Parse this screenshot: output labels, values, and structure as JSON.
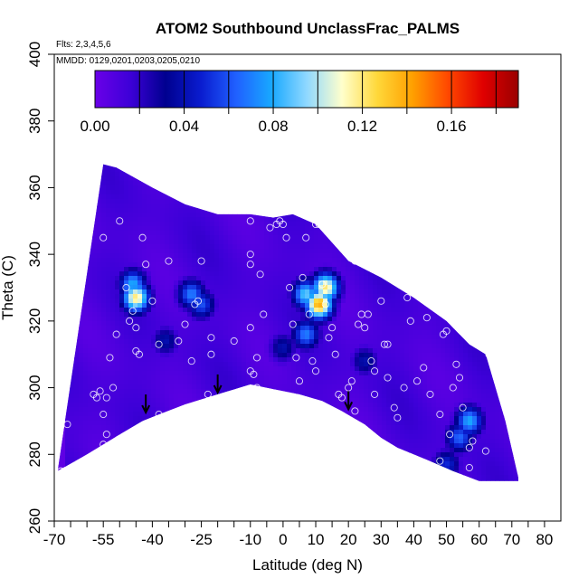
{
  "chart_data": {
    "type": "heatmap",
    "title": "ATOM2 Southbound UnclassFrac_PALMS",
    "subtitle_flights": "Flts: 2,3,4,5,6",
    "subtitle_dates": "MMDD: 0129,0201,0203,0205,0210",
    "xlabel": "Latitude (deg N)",
    "ylabel": "Theta (C)",
    "xlim": [
      -70,
      85
    ],
    "ylim": [
      260,
      400
    ],
    "x_ticks": [
      -70,
      -55,
      -40,
      -25,
      -10,
      0,
      10,
      20,
      30,
      40,
      50,
      60,
      70,
      80
    ],
    "x_minor_ticks": [
      -65,
      -60,
      -50,
      -45,
      -35,
      -30,
      -20,
      -15,
      -5,
      5,
      15,
      25,
      35,
      45,
      55,
      65,
      75
    ],
    "y_ticks": [
      260,
      280,
      300,
      320,
      340,
      360,
      380,
      400
    ],
    "colorbar": {
      "ticks": [
        0.0,
        0.04,
        0.08,
        0.12,
        0.16
      ],
      "tick_labels": [
        "0.00",
        "0.04",
        "0.08",
        "0.12",
        "0.16"
      ],
      "range": [
        0.0,
        0.19
      ],
      "colors": [
        "#6a00e8",
        "#3d00d8",
        "#00008f",
        "#0a1ccf",
        "#2060ff",
        "#18a8ff",
        "#8fd8ff",
        "#ffffcc",
        "#ffd83a",
        "#ffa000",
        "#ff4800",
        "#e00000",
        "#9a0000"
      ]
    },
    "boundary_top": [
      [
        -69,
        275
      ],
      [
        -55,
        367
      ],
      [
        -51,
        366
      ],
      [
        -40,
        360
      ],
      [
        -30,
        355
      ],
      [
        -20,
        352
      ],
      [
        -10,
        352
      ],
      [
        -3,
        351
      ],
      [
        3,
        352
      ],
      [
        10,
        349
      ],
      [
        20,
        338
      ],
      [
        30,
        333
      ],
      [
        40,
        327
      ],
      [
        50,
        320
      ],
      [
        57,
        313
      ],
      [
        62,
        310
      ],
      [
        68,
        290
      ],
      [
        72,
        273
      ]
    ],
    "boundary_bottom": [
      [
        -69,
        275
      ],
      [
        -60,
        280
      ],
      [
        -50,
        286
      ],
      [
        -43,
        290
      ],
      [
        -38,
        292
      ],
      [
        -30,
        295
      ],
      [
        -20,
        298
      ],
      [
        -10,
        301
      ],
      [
        -5,
        300
      ],
      [
        5,
        298
      ],
      [
        12,
        296
      ],
      [
        18,
        293
      ],
      [
        25,
        289
      ],
      [
        30,
        285
      ],
      [
        35,
        282
      ],
      [
        40,
        280
      ],
      [
        45,
        278
      ],
      [
        52,
        275
      ],
      [
        60,
        272
      ],
      [
        72,
        272
      ]
    ],
    "hotspots": [
      {
        "lat": 11,
        "theta": 325,
        "value": 0.14
      },
      {
        "lat": 13,
        "theta": 330,
        "value": 0.12
      },
      {
        "lat": 7,
        "theta": 328,
        "value": 0.09
      },
      {
        "lat": -45,
        "theta": 327,
        "value": 0.12
      },
      {
        "lat": -46,
        "theta": 331,
        "value": 0.08
      },
      {
        "lat": -28,
        "theta": 328,
        "value": 0.07
      },
      {
        "lat": -25,
        "theta": 325,
        "value": 0.06
      },
      {
        "lat": 7,
        "theta": 316,
        "value": 0.07
      },
      {
        "lat": 57,
        "theta": 290,
        "value": 0.08
      },
      {
        "lat": 54,
        "theta": 285,
        "value": 0.065
      },
      {
        "lat": 50,
        "theta": 277,
        "value": 0.05
      },
      {
        "lat": -36,
        "theta": 314,
        "value": 0.04
      },
      {
        "lat": 0,
        "theta": 312,
        "value": 0.04
      },
      {
        "lat": 25,
        "theta": 308,
        "value": 0.04
      }
    ],
    "samples": [
      [
        -68,
        275
      ],
      [
        -66,
        289
      ],
      [
        -58,
        298
      ],
      [
        -57,
        297
      ],
      [
        -56,
        299
      ],
      [
        -55,
        292
      ],
      [
        -54,
        297
      ],
      [
        -54,
        286
      ],
      [
        -55,
        283
      ],
      [
        -56,
        281
      ],
      [
        -52,
        300
      ],
      [
        -51,
        316
      ],
      [
        -53,
        309
      ],
      [
        -55,
        345
      ],
      [
        -50,
        350
      ],
      [
        -48,
        330
      ],
      [
        -47,
        320
      ],
      [
        -45,
        318
      ],
      [
        -45,
        311
      ],
      [
        -46,
        323
      ],
      [
        -44,
        310
      ],
      [
        -43,
        345
      ],
      [
        -42,
        337
      ],
      [
        -40,
        326
      ],
      [
        -38,
        292
      ],
      [
        -38,
        313
      ],
      [
        -35,
        338
      ],
      [
        -32,
        314
      ],
      [
        -30,
        319
      ],
      [
        -28,
        308
      ],
      [
        -27,
        325
      ],
      [
        -26,
        326
      ],
      [
        -25,
        338
      ],
      [
        -23,
        298
      ],
      [
        -22,
        310
      ],
      [
        -22,
        315
      ],
      [
        -15,
        314
      ],
      [
        -10,
        350
      ],
      [
        -10,
        340
      ],
      [
        -10,
        337
      ],
      [
        -10,
        318
      ],
      [
        -10,
        305
      ],
      [
        -9,
        304
      ],
      [
        -8,
        309
      ],
      [
        -8,
        300
      ],
      [
        -6,
        322
      ],
      [
        -7,
        334
      ],
      [
        -4,
        348
      ],
      [
        -2,
        349
      ],
      [
        -1,
        350
      ],
      [
        0,
        349
      ],
      [
        1,
        345
      ],
      [
        2,
        330
      ],
      [
        3,
        319
      ],
      [
        4,
        309
      ],
      [
        5,
        302
      ],
      [
        6,
        333
      ],
      [
        7,
        345
      ],
      [
        8,
        322
      ],
      [
        9,
        308
      ],
      [
        10,
        305
      ],
      [
        10,
        349
      ],
      [
        11,
        349
      ],
      [
        12,
        331
      ],
      [
        13,
        325
      ],
      [
        14,
        315
      ],
      [
        15,
        318
      ],
      [
        16,
        310
      ],
      [
        17,
        298
      ],
      [
        18,
        297
      ],
      [
        20,
        300
      ],
      [
        21,
        302
      ],
      [
        22,
        338
      ],
      [
        22,
        293
      ],
      [
        23,
        319
      ],
      [
        24,
        322
      ],
      [
        25,
        318
      ],
      [
        26,
        322
      ],
      [
        27,
        308
      ],
      [
        28,
        305
      ],
      [
        28,
        298
      ],
      [
        30,
        326
      ],
      [
        31,
        313
      ],
      [
        32,
        313
      ],
      [
        32,
        303
      ],
      [
        34,
        294
      ],
      [
        35,
        291
      ],
      [
        37,
        300
      ],
      [
        38,
        327
      ],
      [
        39,
        320
      ],
      [
        41,
        302
      ],
      [
        43,
        306
      ],
      [
        44,
        321
      ],
      [
        45,
        298
      ],
      [
        48,
        292
      ],
      [
        48,
        278
      ],
      [
        49,
        316
      ],
      [
        50,
        317
      ],
      [
        51,
        286
      ],
      [
        52,
        300
      ],
      [
        53,
        307
      ],
      [
        54,
        303
      ],
      [
        55,
        294
      ],
      [
        57,
        282
      ],
      [
        57,
        276
      ],
      [
        58,
        284
      ],
      [
        60,
        313
      ],
      [
        62,
        281
      ],
      [
        63,
        310
      ]
    ],
    "arrows": [
      {
        "lat": -42,
        "theta": 292
      },
      {
        "lat": -20,
        "theta": 298
      },
      {
        "lat": 20,
        "theta": 293
      }
    ]
  }
}
